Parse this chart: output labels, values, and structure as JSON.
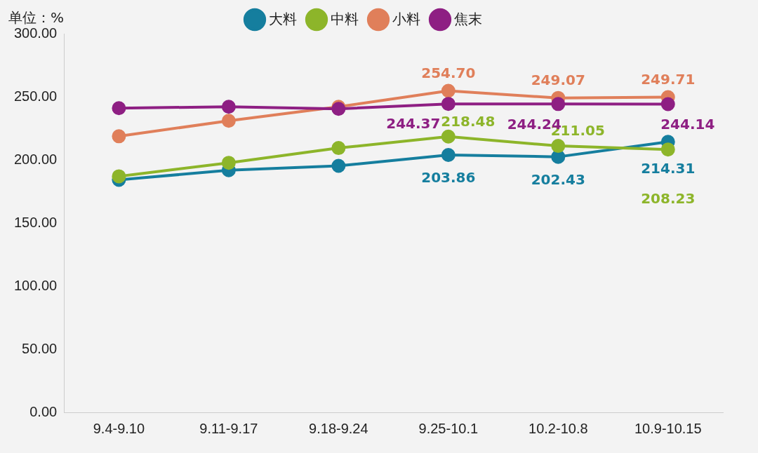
{
  "chart_data": {
    "type": "line",
    "annotations": [
      "单位：%"
    ],
    "categories": [
      "9.4-9.10",
      "9.11-9.17",
      "9.18-9.24",
      "9.25-10.1",
      "10.2-10.8",
      "10.9-10.15"
    ],
    "series": [
      {
        "name": "大料",
        "color": "#157e9e",
        "values": [
          184.2,
          191.8,
          195.3,
          203.86,
          202.43,
          214.31
        ],
        "value_labels": [
          null,
          null,
          null,
          "203.86",
          "202.43",
          "214.31"
        ]
      },
      {
        "name": "中料",
        "color": "#8db52a",
        "values": [
          187,
          197.7,
          209.4,
          218.48,
          211.05,
          208.23
        ],
        "value_labels": [
          null,
          null,
          null,
          "218.48",
          "211.05",
          "208.23"
        ]
      },
      {
        "name": "小料",
        "color": "#e07f5a",
        "values": [
          218.7,
          231,
          242.1,
          254.7,
          249.07,
          249.71
        ],
        "value_labels": [
          null,
          null,
          null,
          "254.70",
          "249.07",
          "249.71"
        ]
      },
      {
        "name": "焦末",
        "color": "#8e1f83",
        "values": [
          241,
          242.1,
          240.4,
          244.37,
          244.24,
          244.14
        ],
        "value_labels": [
          null,
          null,
          null,
          "244.37",
          "244.24",
          "244.14"
        ]
      }
    ],
    "ylim": [
      0,
      300
    ],
    "yticks": [
      {
        "value": 0,
        "label": "0.00"
      },
      {
        "value": 50,
        "label": "50.00"
      },
      {
        "value": 100,
        "label": "100.00"
      },
      {
        "value": 150,
        "label": "150.00"
      },
      {
        "value": 200,
        "label": "200.00"
      },
      {
        "value": 250,
        "label": "250.00"
      },
      {
        "value": 300,
        "label": "300.00"
      }
    ],
    "grid": false,
    "legend": "top",
    "marker": "circle",
    "line_style": "solid"
  }
}
